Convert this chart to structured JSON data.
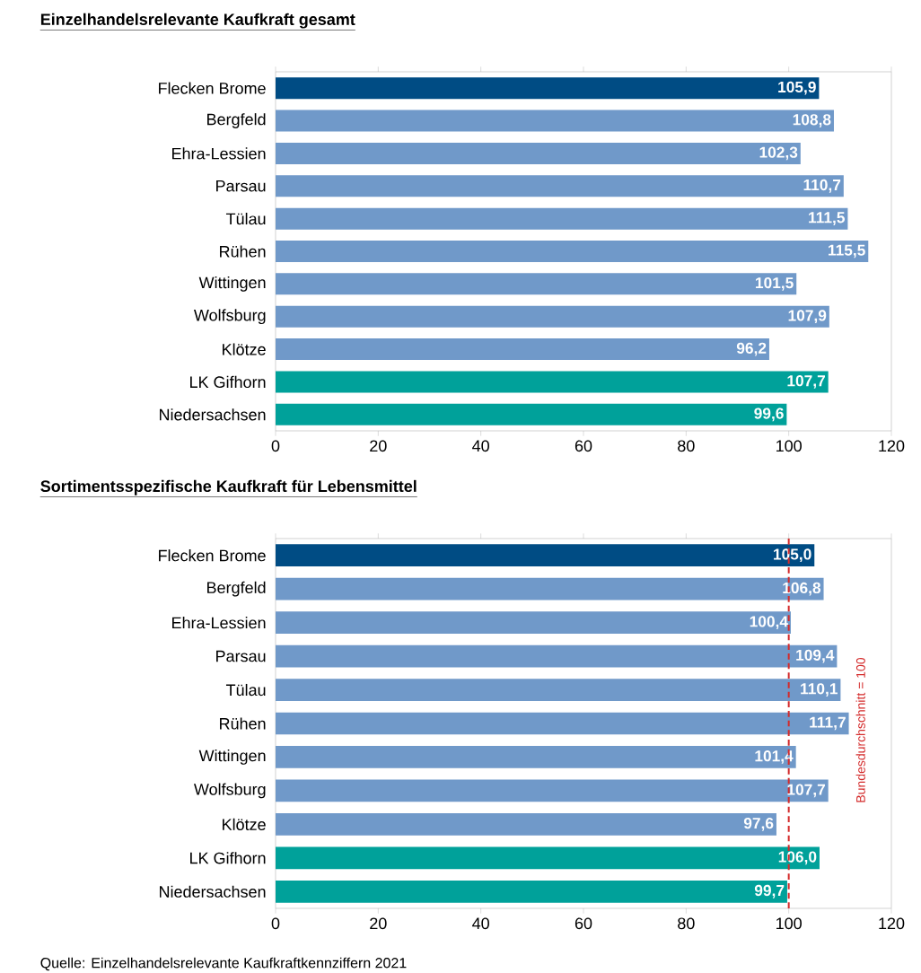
{
  "chart_data": [
    {
      "type": "bar",
      "orientation": "horizontal",
      "title": "Einzelhandelsrelevante Kaufkraft gesamt",
      "categories": [
        "Flecken Brome",
        "Bergfeld",
        "Ehra-Lessien",
        "Parsau",
        "Tülau",
        "Rühen",
        "Wittingen",
        "Wolfsburg",
        "Klötze",
        "LK Gifhorn",
        "Niedersachsen"
      ],
      "values": [
        105.9,
        108.8,
        102.3,
        110.7,
        111.5,
        115.5,
        101.5,
        107.9,
        96.2,
        107.7,
        99.6
      ],
      "value_labels": [
        "105,9",
        "108,8",
        "102,3",
        "110,7",
        "111,5",
        "115,5",
        "101,5",
        "107,9",
        "96,2",
        "107,7",
        "99,6"
      ],
      "colors": [
        "#004c84",
        "#7099c9",
        "#7099c9",
        "#7099c9",
        "#7099c9",
        "#7099c9",
        "#7099c9",
        "#7099c9",
        "#7099c9",
        "#00a19a",
        "#00a19a"
      ],
      "xlim": [
        0,
        120
      ],
      "xticks": [
        0,
        20,
        40,
        60,
        80,
        100,
        120
      ]
    },
    {
      "type": "bar",
      "orientation": "horizontal",
      "title": "Sortimentsspezifische Kaufkraft für Lebensmittel",
      "categories": [
        "Flecken Brome",
        "Bergfeld",
        "Ehra-Lessien",
        "Parsau",
        "Tülau",
        "Rühen",
        "Wittingen",
        "Wolfsburg",
        "Klötze",
        "LK Gifhorn",
        "Niedersachsen"
      ],
      "values": [
        105.0,
        106.8,
        100.4,
        109.4,
        110.1,
        111.7,
        101.4,
        107.7,
        97.6,
        106.0,
        99.7
      ],
      "value_labels": [
        "105,0",
        "106,8",
        "100,4",
        "109,4",
        "110,1",
        "111,7",
        "101,4",
        "107,7",
        "97,6",
        "106,0",
        "99,7"
      ],
      "colors": [
        "#004c84",
        "#7099c9",
        "#7099c9",
        "#7099c9",
        "#7099c9",
        "#7099c9",
        "#7099c9",
        "#7099c9",
        "#7099c9",
        "#00a19a",
        "#00a19a"
      ],
      "xlim": [
        0,
        120
      ],
      "xticks": [
        0,
        20,
        40,
        60,
        80,
        100,
        120
      ],
      "ref_lines": [
        {
          "axis": "x",
          "value": 100,
          "label": "Bundesdurchschnitt = 100",
          "color": "#d42a2a",
          "line_style": "dashed"
        }
      ],
      "annotations": [
        "Quelle: Einzelhandelsrelevante Kaufkraftkennziffern 2021"
      ]
    }
  ]
}
